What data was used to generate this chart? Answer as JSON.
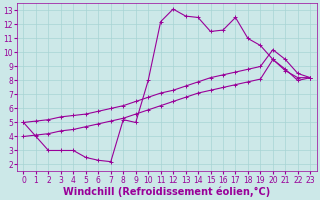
{
  "bg_color": "#cce8e8",
  "grid_color": "#a8d4d4",
  "line_color": "#990099",
  "xlim": [
    -0.5,
    23.5
  ],
  "ylim": [
    1.5,
    13.5
  ],
  "xticks": [
    0,
    1,
    2,
    3,
    4,
    5,
    6,
    7,
    8,
    9,
    10,
    11,
    12,
    13,
    14,
    15,
    16,
    17,
    18,
    19,
    20,
    21,
    22,
    23
  ],
  "yticks": [
    2,
    3,
    4,
    5,
    6,
    7,
    8,
    9,
    10,
    11,
    12,
    13
  ],
  "xlabel": "Windchill (Refroidissement éolien,°C)",
  "line1_x": [
    0,
    1,
    2,
    3,
    4,
    5,
    6,
    7,
    8,
    9,
    10,
    11,
    12,
    13,
    14,
    15,
    16,
    17,
    18,
    19,
    20,
    21,
    22,
    23
  ],
  "line1_y": [
    5,
    4,
    3,
    3,
    3,
    2.5,
    2.3,
    2.2,
    5.2,
    5.0,
    8.0,
    12.2,
    13.1,
    12.6,
    12.5,
    11.5,
    11.6,
    12.5,
    11.0,
    10.5,
    9.5,
    8.7,
    8.2,
    8.2
  ],
  "line2_x": [
    0,
    1,
    2,
    3,
    4,
    5,
    6,
    7,
    8,
    9,
    10,
    11,
    12,
    13,
    14,
    15,
    16,
    17,
    18,
    19,
    20,
    21,
    22,
    23
  ],
  "line2_y": [
    5.0,
    5.1,
    5.2,
    5.4,
    5.5,
    5.6,
    5.8,
    6.0,
    6.2,
    6.5,
    6.8,
    7.1,
    7.3,
    7.6,
    7.9,
    8.2,
    8.4,
    8.6,
    8.8,
    9.0,
    10.2,
    9.5,
    8.5,
    8.2
  ],
  "line3_x": [
    0,
    1,
    2,
    3,
    4,
    5,
    6,
    7,
    8,
    9,
    10,
    11,
    12,
    13,
    14,
    15,
    16,
    17,
    18,
    19,
    20,
    21,
    22,
    23
  ],
  "line3_y": [
    4.0,
    4.1,
    4.2,
    4.4,
    4.5,
    4.7,
    4.9,
    5.1,
    5.3,
    5.6,
    5.9,
    6.2,
    6.5,
    6.8,
    7.1,
    7.3,
    7.5,
    7.7,
    7.9,
    8.1,
    9.5,
    8.8,
    8.0,
    8.2
  ],
  "tick_fontsize": 5.5,
  "xlabel_fontsize": 7.0,
  "marker_size": 2.5,
  "lw": 0.8
}
